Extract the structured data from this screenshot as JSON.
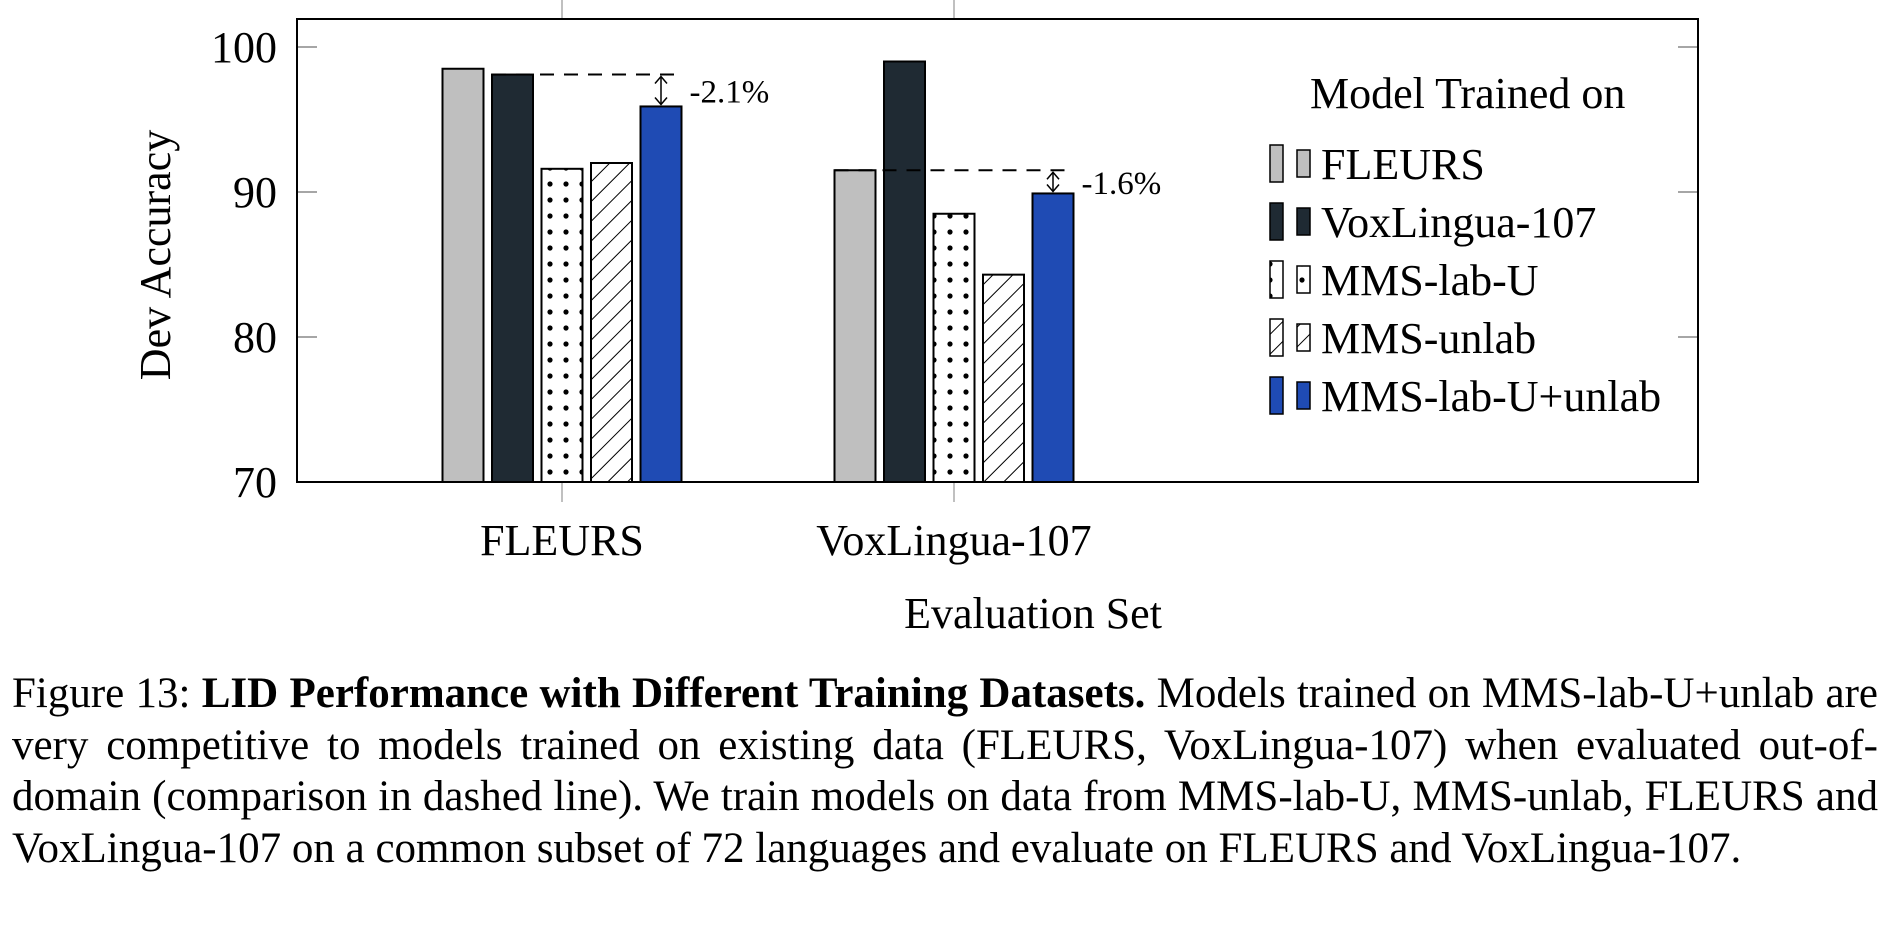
{
  "chart_data": {
    "type": "bar",
    "title": "",
    "xlabel": "Evaluation Set",
    "ylabel": "Dev Accuracy",
    "ylim": [
      70,
      102
    ],
    "yticks": [
      70,
      80,
      90,
      100
    ],
    "categories": [
      "FLEURS",
      "VoxLingua-107"
    ],
    "legend": {
      "title": "Model Trained on",
      "placement": "right"
    },
    "series": [
      {
        "name": "FLEURS",
        "fill": "solid",
        "color": "#bfbfbf",
        "values": [
          98.5,
          91.5
        ]
      },
      {
        "name": "VoxLingua-107",
        "fill": "solid",
        "color": "#1f2a33",
        "values": [
          98.1,
          99.0
        ]
      },
      {
        "name": "MMS-lab-U",
        "fill": "dots",
        "color": "#ffffff",
        "values": [
          91.6,
          88.5
        ]
      },
      {
        "name": "MMS-unlab",
        "fill": "hatch",
        "color": "#ffffff",
        "values": [
          92.0,
          84.3
        ]
      },
      {
        "name": "MMS-lab-U+unlab",
        "fill": "solid",
        "color": "#1f4bb4",
        "values": [
          95.9,
          89.9
        ]
      }
    ],
    "annotations": [
      {
        "category": "FLEURS",
        "from_series": "VoxLingua-107",
        "to_series": "MMS-lab-U+unlab",
        "text": "-2.1%",
        "style": "dashed"
      },
      {
        "category": "VoxLingua-107",
        "from_series": "FLEURS",
        "to_series": "MMS-lab-U+unlab",
        "text": "-1.6%",
        "style": "dashed"
      }
    ],
    "grid": false
  },
  "caption": {
    "label": "Figure 13:",
    "title": "LID Performance with Different Training Datasets.",
    "body": "Models trained on MMS-lab-U+unlab are very competitive to models trained on existing data (FLEURS, VoxLingua-107) when evaluated out-of-domain (comparison in dashed line). We train models on data from MMS-lab-U, MMS-unlab, FLEURS and VoxLingua-107 on a common subset of 72 languages and evaluate on FLEURS and VoxLingua-107."
  }
}
